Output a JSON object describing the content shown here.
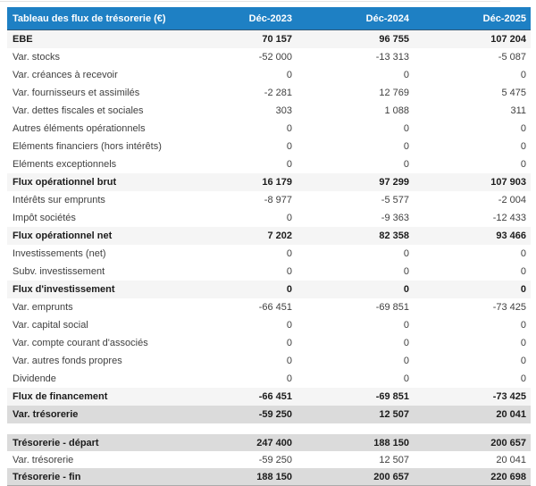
{
  "colors": {
    "header_bg": "#1E80C4",
    "header_text": "#FFFFFF",
    "subtotal_band": "#F5F5F5",
    "total_band": "#DBDBDB",
    "body_text": "#3F3F3F"
  },
  "table": {
    "title": "Tableau des flux de trésorerie (€)",
    "columns": [
      "Déc-2023",
      "Déc-2024",
      "Déc-2025"
    ],
    "rows": [
      {
        "label": "EBE",
        "values": [
          "70 157",
          "96 755",
          "107 204"
        ],
        "style": "subtotal"
      },
      {
        "label": "Var. stocks",
        "values": [
          "-52 000",
          "-13 313",
          "-5 087"
        ],
        "style": "normal"
      },
      {
        "label": "Var. créances à recevoir",
        "values": [
          "0",
          "0",
          "0"
        ],
        "style": "normal"
      },
      {
        "label": "Var. fournisseurs et assimilés",
        "values": [
          "-2 281",
          "12 769",
          "5 475"
        ],
        "style": "normal"
      },
      {
        "label": "Var. dettes fiscales et sociales",
        "values": [
          "303",
          "1 088",
          "311"
        ],
        "style": "normal"
      },
      {
        "label": "Autres éléments opérationnels",
        "values": [
          "0",
          "0",
          "0"
        ],
        "style": "normal"
      },
      {
        "label": "Eléments financiers (hors intérêts)",
        "values": [
          "0",
          "0",
          "0"
        ],
        "style": "normal"
      },
      {
        "label": "Eléments exceptionnels",
        "values": [
          "0",
          "0",
          "0"
        ],
        "style": "normal"
      },
      {
        "label": "Flux opérationnel brut",
        "values": [
          "16 179",
          "97 299",
          "107 903"
        ],
        "style": "subtotal"
      },
      {
        "label": "Intérêts sur emprunts",
        "values": [
          "-8 977",
          "-5 577",
          "-2 004"
        ],
        "style": "normal"
      },
      {
        "label": "Impôt sociétés",
        "values": [
          "0",
          "-9 363",
          "-12 433"
        ],
        "style": "normal"
      },
      {
        "label": "Flux opérationnel net",
        "values": [
          "7 202",
          "82 358",
          "93 466"
        ],
        "style": "subtotal"
      },
      {
        "label": "Investissements (net)",
        "values": [
          "0",
          "0",
          "0"
        ],
        "style": "normal"
      },
      {
        "label": "Subv. investissement",
        "values": [
          "0",
          "0",
          "0"
        ],
        "style": "normal"
      },
      {
        "label": "Flux d'investissement",
        "values": [
          "0",
          "0",
          "0"
        ],
        "style": "subtotal"
      },
      {
        "label": "Var. emprunts",
        "values": [
          "-66 451",
          "-69 851",
          "-73 425"
        ],
        "style": "normal"
      },
      {
        "label": "Var. capital social",
        "values": [
          "0",
          "0",
          "0"
        ],
        "style": "normal"
      },
      {
        "label": "Var. compte courant d'associés",
        "values": [
          "0",
          "0",
          "0"
        ],
        "style": "normal"
      },
      {
        "label": "Var. autres fonds propres",
        "values": [
          "0",
          "0",
          "0"
        ],
        "style": "normal"
      },
      {
        "label": "Dividende",
        "values": [
          "0",
          "0",
          "0"
        ],
        "style": "normal"
      },
      {
        "label": "Flux de financement",
        "values": [
          "-66 451",
          "-69 851",
          "-73 425"
        ],
        "style": "subtotal"
      },
      {
        "label": "Var. trésorerie",
        "values": [
          "-59 250",
          "12 507",
          "20 041"
        ],
        "style": "total"
      },
      {
        "label": "",
        "values": [
          "",
          "",
          ""
        ],
        "style": "spacer"
      },
      {
        "label": "Trésorerie - départ",
        "values": [
          "247 400",
          "188 150",
          "200 657"
        ],
        "style": "total short"
      },
      {
        "label": "Var. trésorerie",
        "values": [
          "-59 250",
          "12 507",
          "20 041"
        ],
        "style": "normal short"
      },
      {
        "label": "Trésorerie - fin",
        "values": [
          "188 150",
          "200 657",
          "220 698"
        ],
        "style": "total short last"
      }
    ]
  }
}
